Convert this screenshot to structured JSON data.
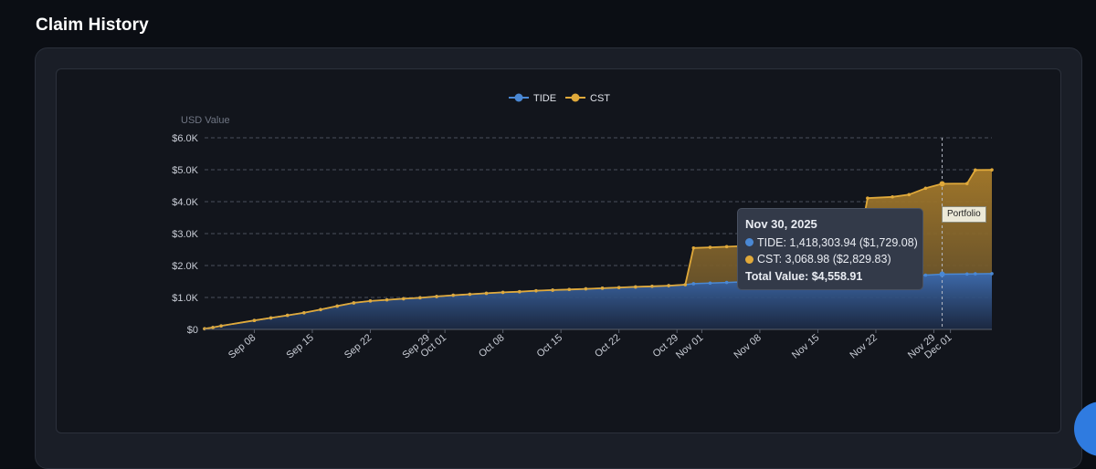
{
  "page": {
    "title": "Claim History"
  },
  "colors": {
    "background": "#0b0e14",
    "tide": "#4a88d4",
    "cst": "#e0a93a",
    "grid": "#4a4f5c",
    "axis_text": "#c9cdd6"
  },
  "chart_data": {
    "type": "area",
    "stacked": true,
    "ylabel": "USD Value",
    "ylim": [
      0,
      6000
    ],
    "yticks": [
      {
        "value": 0,
        "label": "$0"
      },
      {
        "value": 1000,
        "label": "$1.0K"
      },
      {
        "value": 2000,
        "label": "$2.0K"
      },
      {
        "value": 3000,
        "label": "$3.0K"
      },
      {
        "value": 4000,
        "label": "$4.0K"
      },
      {
        "value": 5000,
        "label": "$5.0K"
      },
      {
        "value": 6000,
        "label": "$6.0K"
      }
    ],
    "xlim": [
      "2025-09-02",
      "2025-12-06"
    ],
    "xticks": [
      {
        "date": "2025-09-08",
        "label": "Sep 08"
      },
      {
        "date": "2025-09-15",
        "label": "Sep 15"
      },
      {
        "date": "2025-09-22",
        "label": "Sep 22"
      },
      {
        "date": "2025-09-29",
        "label": "Sep 29"
      },
      {
        "date": "2025-10-01",
        "label": "Oct 01"
      },
      {
        "date": "2025-10-08",
        "label": "Oct 08"
      },
      {
        "date": "2025-10-15",
        "label": "Oct 15"
      },
      {
        "date": "2025-10-22",
        "label": "Oct 22"
      },
      {
        "date": "2025-10-29",
        "label": "Oct 29"
      },
      {
        "date": "2025-11-01",
        "label": "Nov 01"
      },
      {
        "date": "2025-11-08",
        "label": "Nov 08"
      },
      {
        "date": "2025-11-15",
        "label": "Nov 15"
      },
      {
        "date": "2025-11-22",
        "label": "Nov 22"
      },
      {
        "date": "2025-11-29",
        "label": "Nov 29"
      },
      {
        "date": "2025-12-01",
        "label": "Dec 01"
      }
    ],
    "legend": {
      "position": "top-center"
    },
    "x": [
      "2025-09-02",
      "2025-09-03",
      "2025-09-04",
      "2025-09-08",
      "2025-09-10",
      "2025-09-12",
      "2025-09-14",
      "2025-09-16",
      "2025-09-18",
      "2025-09-20",
      "2025-09-22",
      "2025-09-24",
      "2025-09-26",
      "2025-09-28",
      "2025-09-30",
      "2025-10-02",
      "2025-10-04",
      "2025-10-06",
      "2025-10-08",
      "2025-10-10",
      "2025-10-12",
      "2025-10-14",
      "2025-10-16",
      "2025-10-18",
      "2025-10-20",
      "2025-10-22",
      "2025-10-24",
      "2025-10-26",
      "2025-10-28",
      "2025-10-30",
      "2025-10-31",
      "2025-11-02",
      "2025-11-04",
      "2025-11-06",
      "2025-11-08",
      "2025-11-10",
      "2025-11-12",
      "2025-11-14",
      "2025-11-16",
      "2025-11-18",
      "2025-11-20",
      "2025-11-21",
      "2025-11-24",
      "2025-11-26",
      "2025-11-28",
      "2025-11-30",
      "2025-12-03",
      "2025-12-04",
      "2025-12-06"
    ],
    "series": [
      {
        "name": "TIDE",
        "values": [
          20,
          60,
          110,
          280,
          360,
          440,
          520,
          620,
          730,
          830,
          890,
          925,
          960,
          990,
          1030,
          1070,
          1100,
          1130,
          1160,
          1180,
          1210,
          1230,
          1250,
          1270,
          1290,
          1310,
          1330,
          1350,
          1370,
          1400,
          1430,
          1450,
          1470,
          1490,
          1510,
          1540,
          1570,
          1590,
          1610,
          1630,
          1650,
          1660,
          1680,
          1690,
          1700,
          1729.08,
          1735,
          1740,
          1745
        ]
      },
      {
        "name": "CST",
        "values": [
          0,
          0,
          0,
          0,
          0,
          0,
          0,
          0,
          0,
          0,
          0,
          0,
          0,
          0,
          0,
          0,
          0,
          0,
          0,
          0,
          0,
          0,
          0,
          0,
          0,
          0,
          0,
          0,
          0,
          0,
          1120,
          1120,
          1120,
          1120,
          1120,
          1100,
          1090,
          1090,
          1090,
          1090,
          1090,
          2450,
          2470,
          2530,
          2720,
          2829.83,
          2830,
          3250,
          3250
        ]
      }
    ],
    "crosshair_label": "Portfolio",
    "tooltip": {
      "title": "Nov 30, 2025",
      "rows": [
        {
          "series": "TIDE",
          "text": "TIDE: 1,418,303.94 ($1,729.08)"
        },
        {
          "series": "CST",
          "text": "CST: 3,068.98 ($2,829.83)"
        }
      ],
      "total": "Total Value: $4,558.91",
      "date": "2025-11-30"
    }
  }
}
